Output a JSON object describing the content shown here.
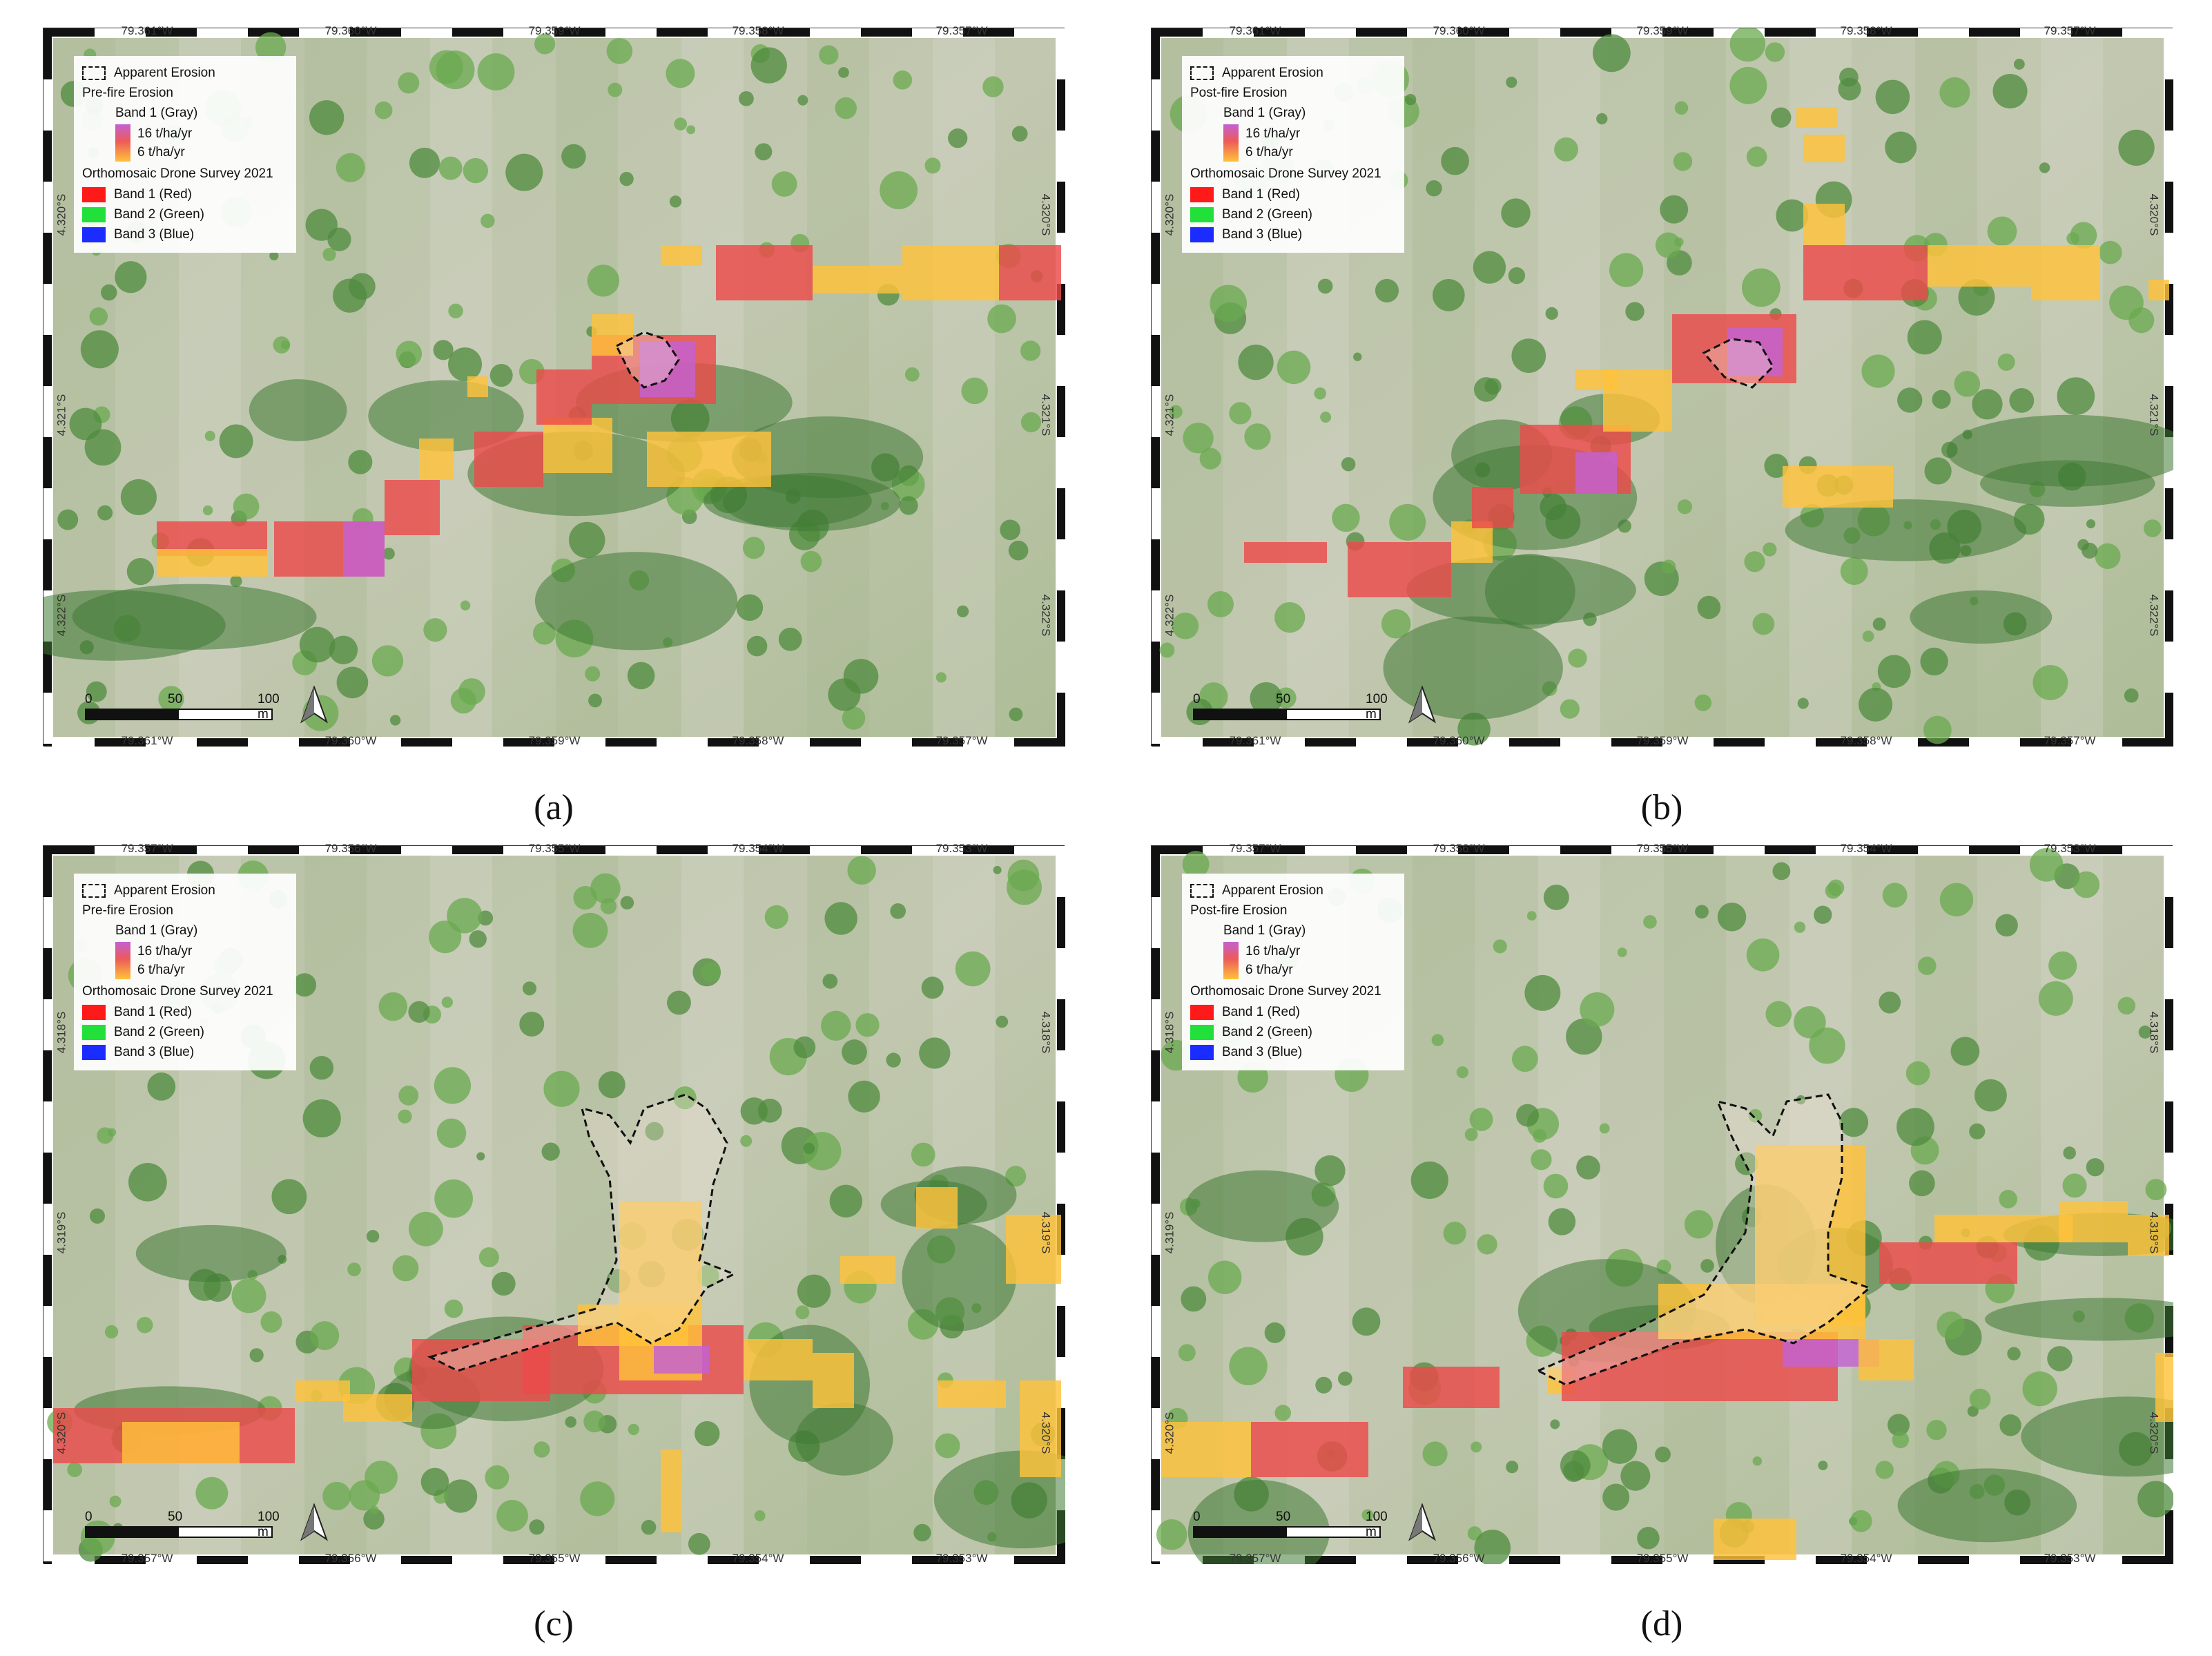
{
  "figure": {
    "panels": [
      {
        "id": "a",
        "caption": "(a)",
        "lon_ticks": [
          "79.361°W",
          "79.360°W",
          "79.359°W",
          "79.358°W",
          "79.357°W"
        ],
        "lat_ticks": [
          "4.320°S",
          "4.321°S",
          "4.322°S"
        ],
        "legend": {
          "apparent_erosion": "Apparent Erosion",
          "erosion_title": "Pre-fire Erosion",
          "band_gray": "Band 1 (Gray)",
          "grad_high": "16 t/ha/yr",
          "grad_low": "6 t/ha/yr",
          "survey_title": "Orthomosaic Drone Survey 2021",
          "band_red": "Band 1 (Red)",
          "band_green": "Band 2 (Green)",
          "band_blue": "Band 3 (Blue)"
        },
        "scale": {
          "l0": "0",
          "l1": "50",
          "l2": "100 m"
        }
      },
      {
        "id": "b",
        "caption": "(b)",
        "lon_ticks": [
          "79.361°W",
          "79.360°W",
          "79.359°W",
          "79.358°W",
          "79.357°W"
        ],
        "lat_ticks": [
          "4.320°S",
          "4.321°S",
          "4.322°S"
        ],
        "legend": {
          "apparent_erosion": "Apparent Erosion",
          "erosion_title": "Post-fire Erosion",
          "band_gray": "Band 1 (Gray)",
          "grad_high": "16 t/ha/yr",
          "grad_low": "6 t/ha/yr",
          "survey_title": "Orthomosaic Drone Survey 2021",
          "band_red": "Band 1 (Red)",
          "band_green": "Band 2 (Green)",
          "band_blue": "Band 3 (Blue)"
        },
        "scale": {
          "l0": "0",
          "l1": "50",
          "l2": "100 m"
        }
      },
      {
        "id": "c",
        "caption": "(c)",
        "lon_ticks": [
          "79.357°W",
          "79.356°W",
          "79.355°W",
          "79.354°W",
          "79.353°W"
        ],
        "lat_ticks": [
          "4.318°S",
          "4.319°S",
          "4.320°S"
        ],
        "legend": {
          "apparent_erosion": "Apparent Erosion",
          "erosion_title": "Pre-fire Erosion",
          "band_gray": "Band 1 (Gray)",
          "grad_high": "16 t/ha/yr",
          "grad_low": "6 t/ha/yr",
          "survey_title": "Orthomosaic Drone Survey 2021",
          "band_red": "Band 1 (Red)",
          "band_green": "Band 2 (Green)",
          "band_blue": "Band 3 (Blue)"
        },
        "scale": {
          "l0": "0",
          "l1": "50",
          "l2": "100 m"
        }
      },
      {
        "id": "d",
        "caption": "(d)",
        "lon_ticks": [
          "79.357°W",
          "79.356°W",
          "79.355°W",
          "79.354°W",
          "79.353°W"
        ],
        "lat_ticks": [
          "4.318°S",
          "4.319°S",
          "4.320°S"
        ],
        "legend": {
          "apparent_erosion": "Apparent Erosion",
          "erosion_title": "Post-fire Erosion",
          "band_gray": "Band 1 (Gray)",
          "grad_high": "16 t/ha/yr",
          "grad_low": "6 t/ha/yr",
          "survey_title": "Orthomosaic Drone Survey 2021",
          "band_red": "Band 1 (Red)",
          "band_green": "Band 2 (Green)",
          "band_blue": "Band 3 (Blue)"
        },
        "scale": {
          "l0": "0",
          "l1": "50",
          "l2": "100 m"
        }
      }
    ],
    "colors": {
      "erosion_high": "#c361d3",
      "erosion_mid": "#ec4b4b",
      "erosion_low": "#ffc23a",
      "band_red": "#ff1a1a",
      "band_green": "#22e03a",
      "band_blue": "#1a2cff",
      "vegetation": "#5f9a4a",
      "grass": "#b7c5a0"
    }
  }
}
